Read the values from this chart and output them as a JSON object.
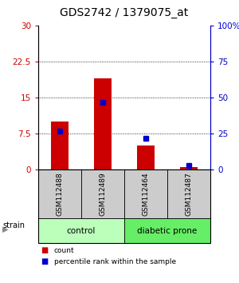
{
  "title": "GDS2742 / 1379075_at",
  "samples": [
    "GSM112488",
    "GSM112489",
    "GSM112464",
    "GSM112487"
  ],
  "red_values": [
    10.0,
    19.0,
    5.0,
    0.5
  ],
  "blue_values": [
    27.0,
    47.0,
    22.0,
    3.0
  ],
  "ylim_left": [
    0,
    30
  ],
  "ylim_right": [
    0,
    100
  ],
  "yticks_left": [
    0,
    7.5,
    15,
    22.5,
    30
  ],
  "yticks_right": [
    0,
    25,
    50,
    75,
    100
  ],
  "ytick_labels_left": [
    "0",
    "7.5",
    "15",
    "22.5",
    "30"
  ],
  "ytick_labels_right": [
    "0",
    "25",
    "50",
    "75",
    "100%"
  ],
  "groups": [
    {
      "label": "control",
      "indices": [
        0,
        1
      ],
      "color": "#bbffbb"
    },
    {
      "label": "diabetic prone",
      "indices": [
        2,
        3
      ],
      "color": "#66ee66"
    }
  ],
  "strain_label": "strain",
  "legend_items": [
    {
      "label": "count",
      "color": "#cc0000"
    },
    {
      "label": "percentile rank within the sample",
      "color": "#0000cc"
    }
  ],
  "bar_color": "#cc0000",
  "marker_color": "#0000cc",
  "bar_width": 0.4,
  "marker_size": 4,
  "title_fontsize": 10,
  "tick_fontsize": 7.5,
  "sample_box_color": "#cccccc",
  "left_tick_color": "#cc0000",
  "right_tick_color": "#0000cc"
}
